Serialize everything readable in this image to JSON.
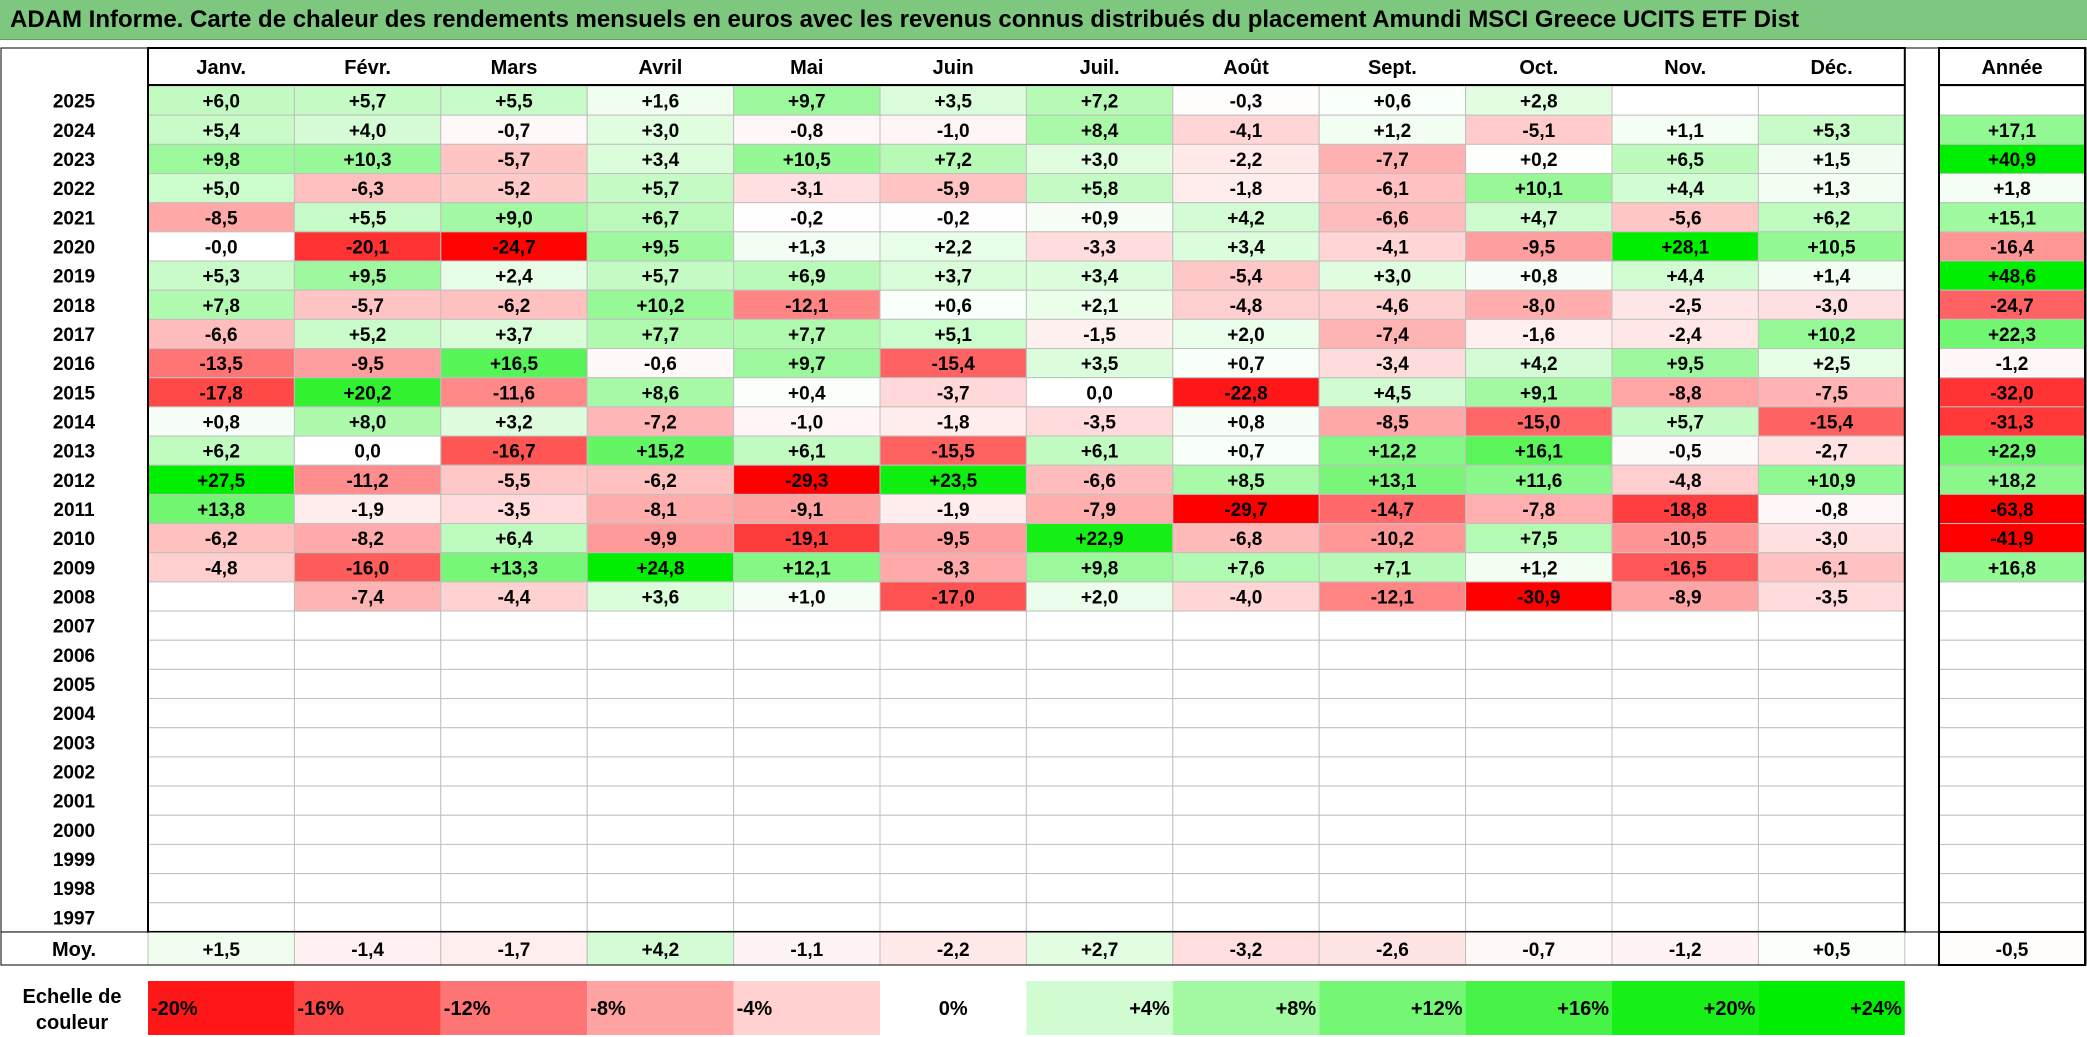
{
  "title": "ADAM Informe. Carte de chaleur des rendements mensuels en euros avec les revenus connus distribués du placement Amundi MSCI Greece UCITS ETF Dist",
  "chart_data": {
    "type": "heatmap",
    "title": "ADAM Informe. Carte de chaleur des rendements mensuels en euros avec les revenus connus distribués du placement Amundi MSCI Greece UCITS ETF Dist",
    "months": [
      "Janv.",
      "Févr.",
      "Mars",
      "Avril",
      "Mai",
      "Juin",
      "Juil.",
      "Août",
      "Sept.",
      "Oct.",
      "Nov.",
      "Déc."
    ],
    "year_header": "Année",
    "rows": [
      {
        "year": "2025",
        "values": [
          "+6,0",
          "+5,7",
          "+5,5",
          "+1,6",
          "+9,7",
          "+3,5",
          "+7,2",
          "-0,3",
          "+0,6",
          "+2,8",
          "",
          ""
        ],
        "annual": ""
      },
      {
        "year": "2024",
        "values": [
          "+5,4",
          "+4,0",
          "-0,7",
          "+3,0",
          "-0,8",
          "-1,0",
          "+8,4",
          "-4,1",
          "+1,2",
          "-5,1",
          "+1,1",
          "+5,3"
        ],
        "annual": "+17,1"
      },
      {
        "year": "2023",
        "values": [
          "+9,8",
          "+10,3",
          "-5,7",
          "+3,4",
          "+10,5",
          "+7,2",
          "+3,0",
          "-2,2",
          "-7,7",
          "+0,2",
          "+6,5",
          "+1,5"
        ],
        "annual": "+40,9"
      },
      {
        "year": "2022",
        "values": [
          "+5,0",
          "-6,3",
          "-5,2",
          "+5,7",
          "-3,1",
          "-5,9",
          "+5,8",
          "-1,8",
          "-6,1",
          "+10,1",
          "+4,4",
          "+1,3"
        ],
        "annual": "+1,8"
      },
      {
        "year": "2021",
        "values": [
          "-8,5",
          "+5,5",
          "+9,0",
          "+6,7",
          "-0,2",
          "-0,2",
          "+0,9",
          "+4,2",
          "-6,6",
          "+4,7",
          "-5,6",
          "+6,2"
        ],
        "annual": "+15,1"
      },
      {
        "year": "2020",
        "values": [
          "-0,0",
          "-20,1",
          "-24,7",
          "+9,5",
          "+1,3",
          "+2,2",
          "-3,3",
          "+3,4",
          "-4,1",
          "-9,5",
          "+28,1",
          "+10,5"
        ],
        "annual": "-16,4"
      },
      {
        "year": "2019",
        "values": [
          "+5,3",
          "+9,5",
          "+2,4",
          "+5,7",
          "+6,9",
          "+3,7",
          "+3,4",
          "-5,4",
          "+3,0",
          "+0,8",
          "+4,4",
          "+1,4"
        ],
        "annual": "+48,6"
      },
      {
        "year": "2018",
        "values": [
          "+7,8",
          "-5,7",
          "-6,2",
          "+10,2",
          "-12,1",
          "+0,6",
          "+2,1",
          "-4,8",
          "-4,6",
          "-8,0",
          "-2,5",
          "-3,0"
        ],
        "annual": "-24,7"
      },
      {
        "year": "2017",
        "values": [
          "-6,6",
          "+5,2",
          "+3,7",
          "+7,7",
          "+7,7",
          "+5,1",
          "-1,5",
          "+2,0",
          "-7,4",
          "-1,6",
          "-2,4",
          "+10,2"
        ],
        "annual": "+22,3"
      },
      {
        "year": "2016",
        "values": [
          "-13,5",
          "-9,5",
          "+16,5",
          "-0,6",
          "+9,7",
          "-15,4",
          "+3,5",
          "+0,7",
          "-3,4",
          "+4,2",
          "+9,5",
          "+2,5"
        ],
        "annual": "-1,2"
      },
      {
        "year": "2015",
        "values": [
          "-17,8",
          "+20,2",
          "-11,6",
          "+8,6",
          "+0,4",
          "-3,7",
          "0,0",
          "-22,8",
          "+4,5",
          "+9,1",
          "-8,8",
          "-7,5"
        ],
        "annual": "-32,0"
      },
      {
        "year": "2014",
        "values": [
          "+0,8",
          "+8,0",
          "+3,2",
          "-7,2",
          "-1,0",
          "-1,8",
          "-3,5",
          "+0,8",
          "-8,5",
          "-15,0",
          "+5,7",
          "-15,4"
        ],
        "annual": "-31,3"
      },
      {
        "year": "2013",
        "values": [
          "+6,2",
          "0,0",
          "-16,7",
          "+15,2",
          "+6,1",
          "-15,5",
          "+6,1",
          "+0,7",
          "+12,2",
          "+16,1",
          "-0,5",
          "-2,7"
        ],
        "annual": "+22,9"
      },
      {
        "year": "2012",
        "values": [
          "+27,5",
          "-11,2",
          "-5,5",
          "-6,2",
          "-29,3",
          "+23,5",
          "-6,6",
          "+8,5",
          "+13,1",
          "+11,6",
          "-4,8",
          "+10,9"
        ],
        "annual": "+18,2"
      },
      {
        "year": "2011",
        "values": [
          "+13,8",
          "-1,9",
          "-3,5",
          "-8,1",
          "-9,1",
          "-1,9",
          "-7,9",
          "-29,7",
          "-14,7",
          "-7,8",
          "-18,8",
          "-0,8"
        ],
        "annual": "-63,8"
      },
      {
        "year": "2010",
        "values": [
          "-6,2",
          "-8,2",
          "+6,4",
          "-9,9",
          "-19,1",
          "-9,5",
          "+22,9",
          "-6,8",
          "-10,2",
          "+7,5",
          "-10,5",
          "-3,0"
        ],
        "annual": "-41,9"
      },
      {
        "year": "2009",
        "values": [
          "-4,8",
          "-16,0",
          "+13,3",
          "+24,8",
          "+12,1",
          "-8,3",
          "+9,8",
          "+7,6",
          "+7,1",
          "+1,2",
          "-16,5",
          "-6,1"
        ],
        "annual": "+16,8"
      },
      {
        "year": "2008",
        "values": [
          "",
          "-7,4",
          "-4,4",
          "+3,6",
          "+1,0",
          "-17,0",
          "+2,0",
          "-4,0",
          "-12,1",
          "-30,9",
          "-8,9",
          "-3,5"
        ],
        "annual": ""
      },
      {
        "year": "2007",
        "values": [
          "",
          "",
          "",
          "",
          "",
          "",
          "",
          "",
          "",
          "",
          "",
          ""
        ],
        "annual": ""
      },
      {
        "year": "2006",
        "values": [
          "",
          "",
          "",
          "",
          "",
          "",
          "",
          "",
          "",
          "",
          "",
          ""
        ],
        "annual": ""
      },
      {
        "year": "2005",
        "values": [
          "",
          "",
          "",
          "",
          "",
          "",
          "",
          "",
          "",
          "",
          "",
          ""
        ],
        "annual": ""
      },
      {
        "year": "2004",
        "values": [
          "",
          "",
          "",
          "",
          "",
          "",
          "",
          "",
          "",
          "",
          "",
          ""
        ],
        "annual": ""
      },
      {
        "year": "2003",
        "values": [
          "",
          "",
          "",
          "",
          "",
          "",
          "",
          "",
          "",
          "",
          "",
          ""
        ],
        "annual": ""
      },
      {
        "year": "2002",
        "values": [
          "",
          "",
          "",
          "",
          "",
          "",
          "",
          "",
          "",
          "",
          "",
          ""
        ],
        "annual": ""
      },
      {
        "year": "2001",
        "values": [
          "",
          "",
          "",
          "",
          "",
          "",
          "",
          "",
          "",
          "",
          "",
          ""
        ],
        "annual": ""
      },
      {
        "year": "2000",
        "values": [
          "",
          "",
          "",
          "",
          "",
          "",
          "",
          "",
          "",
          "",
          "",
          ""
        ],
        "annual": ""
      },
      {
        "year": "1999",
        "values": [
          "",
          "",
          "",
          "",
          "",
          "",
          "",
          "",
          "",
          "",
          "",
          ""
        ],
        "annual": ""
      },
      {
        "year": "1998",
        "values": [
          "",
          "",
          "",
          "",
          "",
          "",
          "",
          "",
          "",
          "",
          "",
          ""
        ],
        "annual": ""
      },
      {
        "year": "1997",
        "values": [
          "",
          "",
          "",
          "",
          "",
          "",
          "",
          "",
          "",
          "",
          "",
          ""
        ],
        "annual": ""
      }
    ],
    "average": {
      "label": "Moy.",
      "values": [
        "+1,5",
        "-1,4",
        "-1,7",
        "+4,2",
        "-1,1",
        "-2,2",
        "+2,7",
        "-3,2",
        "-2,6",
        "-0,7",
        "-1,2",
        "+0,5"
      ],
      "annual": "-0,5"
    },
    "scale": {
      "label": "Echelle de couleur",
      "steps": [
        {
          "label": "-20%",
          "value": -20
        },
        {
          "label": "-16%",
          "value": -16
        },
        {
          "label": "-12%",
          "value": -12
        },
        {
          "label": "-8%",
          "value": -8
        },
        {
          "label": "-4%",
          "value": -4
        },
        {
          "label": "0%",
          "value": 0
        },
        {
          "label": "+4%",
          "value": 4
        },
        {
          "label": "+8%",
          "value": 8
        },
        {
          "label": "+12%",
          "value": 12
        },
        {
          "label": "+16%",
          "value": 16
        },
        {
          "label": "+20%",
          "value": 20
        },
        {
          "label": "+24%",
          "value": 24
        }
      ]
    },
    "colors": {
      "negative_max": "#ff0000",
      "neutral": "#ffffff",
      "positive_max": "#00ee00",
      "title_bar": "#7dc77e",
      "grid": "#c0c0c0"
    }
  }
}
